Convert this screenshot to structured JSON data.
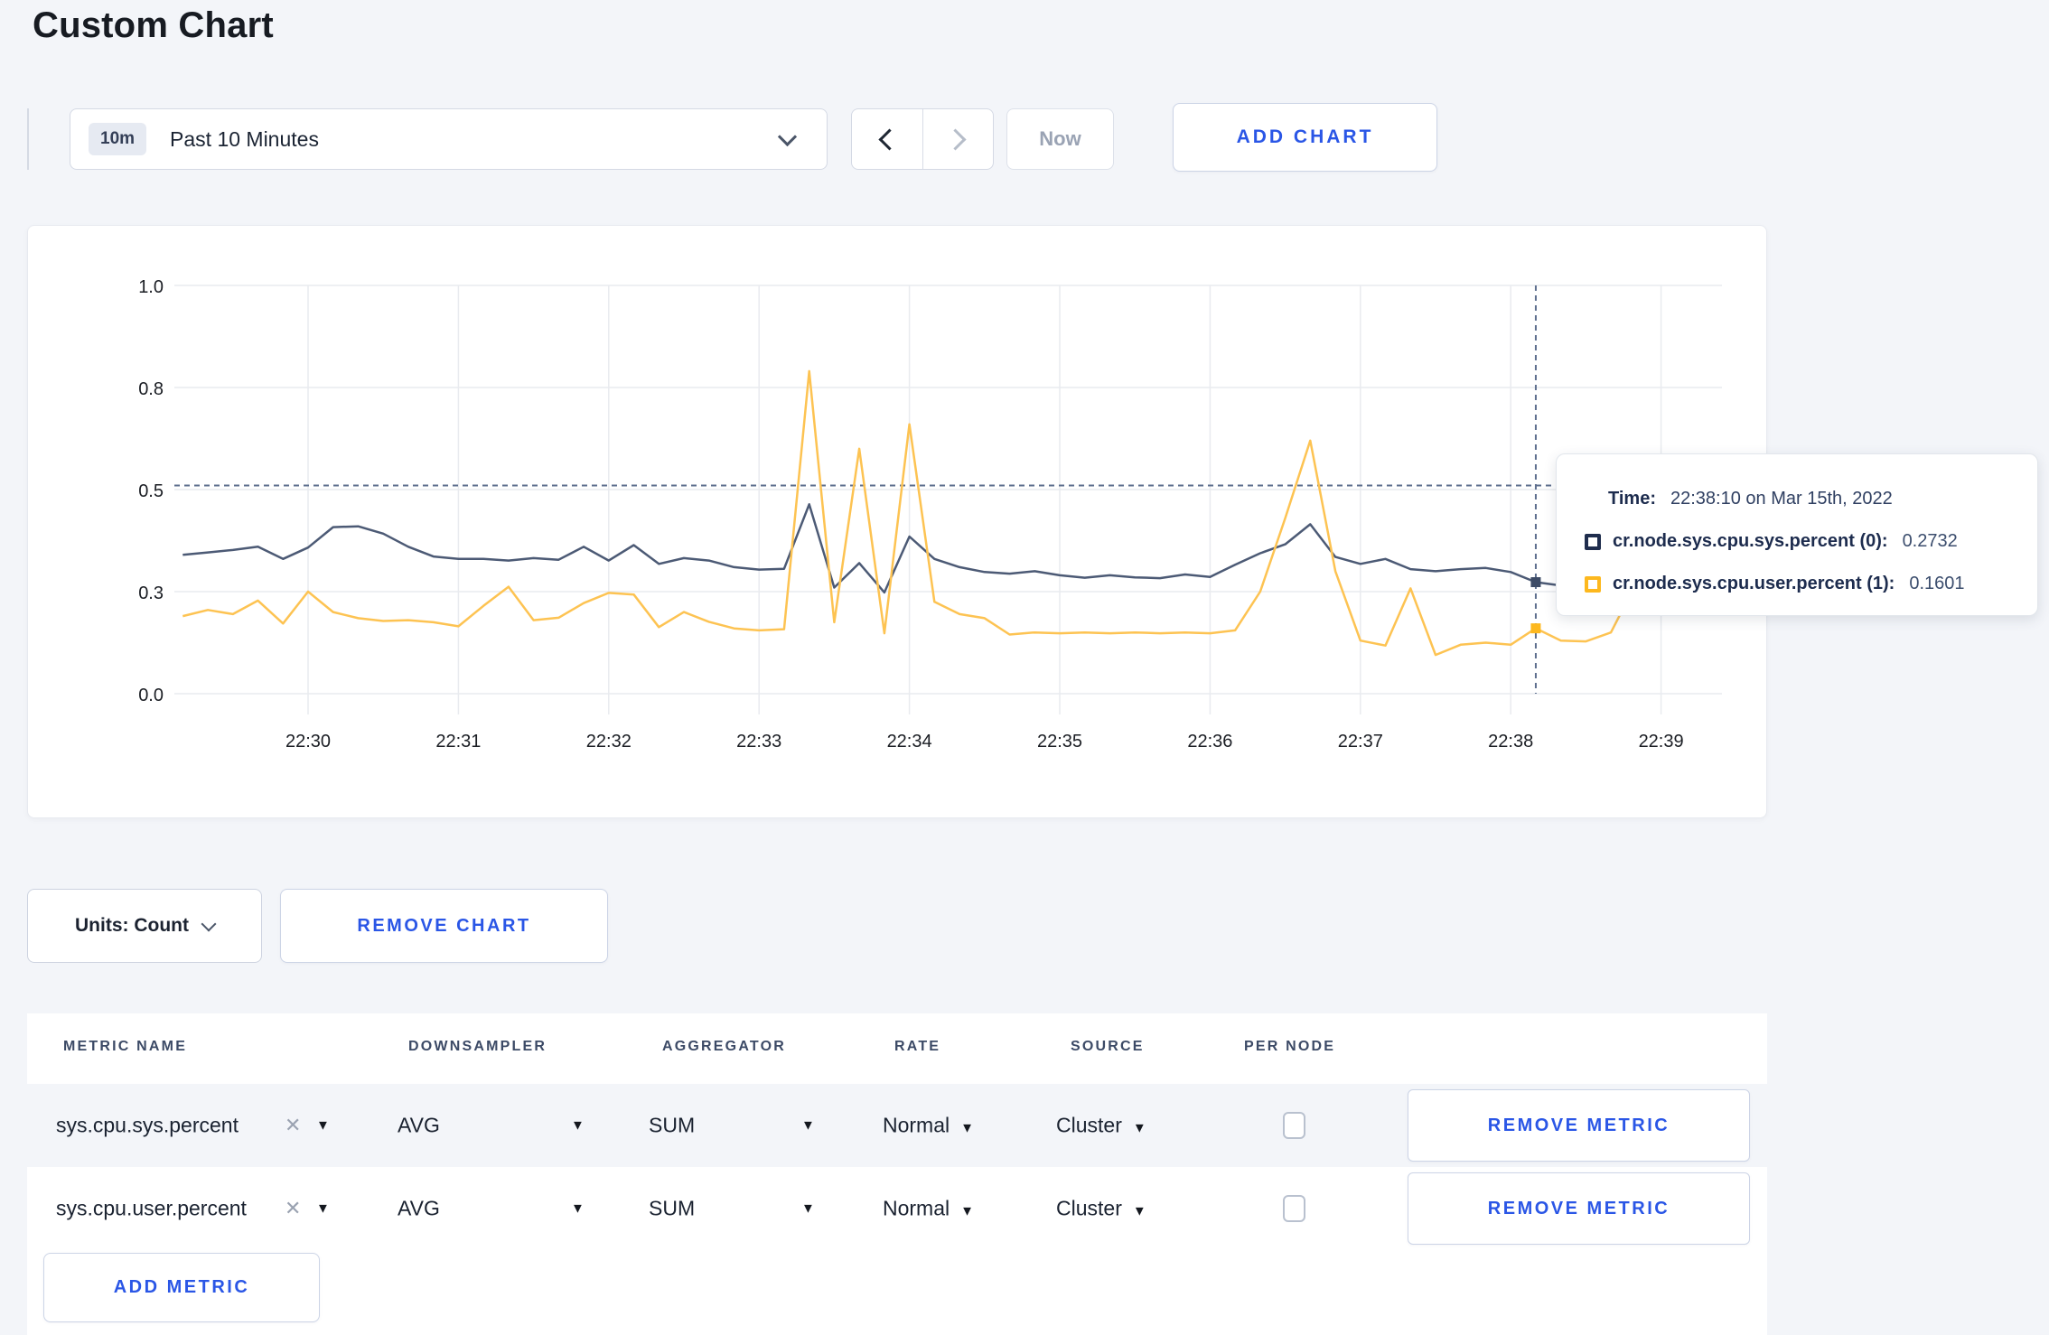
{
  "page": {
    "title": "Custom Chart",
    "background": "#f3f5f9",
    "accent_blue": "#2a56e6"
  },
  "icons": {
    "caret_down": "▼",
    "close": "✕"
  },
  "toolbar": {
    "time_window_badge": "10m",
    "time_window_label": "Past 10 Minutes",
    "now_label": "Now",
    "add_chart_label": "ADD CHART"
  },
  "chart_data": {
    "type": "line",
    "title": "",
    "xlabel": "",
    "ylabel": "",
    "ylim": [
      0,
      1
    ],
    "grid": true,
    "legend_position": "none",
    "x_tick_labels": [
      "22:30",
      "22:31",
      "22:32",
      "22:33",
      "22:34",
      "22:35",
      "22:36",
      "22:37",
      "22:38",
      "22:39"
    ],
    "y_ticks": [
      {
        "value": 0.0,
        "label": "0.0"
      },
      {
        "value": 0.25,
        "label": "0.3"
      },
      {
        "value": 0.5,
        "label": "0.5"
      },
      {
        "value": 0.75,
        "label": "0.8"
      },
      {
        "value": 1.0,
        "label": "1.0"
      }
    ],
    "x": [
      "22:29:10",
      "22:29:20",
      "22:29:30",
      "22:29:40",
      "22:29:50",
      "22:30:00",
      "22:30:10",
      "22:30:20",
      "22:30:30",
      "22:30:40",
      "22:30:50",
      "22:31:00",
      "22:31:10",
      "22:31:20",
      "22:31:30",
      "22:31:40",
      "22:31:50",
      "22:32:00",
      "22:32:10",
      "22:32:20",
      "22:32:30",
      "22:32:40",
      "22:32:50",
      "22:33:00",
      "22:33:10",
      "22:33:20",
      "22:33:30",
      "22:33:40",
      "22:33:50",
      "22:34:00",
      "22:34:10",
      "22:34:20",
      "22:34:30",
      "22:34:40",
      "22:34:50",
      "22:35:00",
      "22:35:10",
      "22:35:20",
      "22:35:30",
      "22:35:40",
      "22:35:50",
      "22:36:00",
      "22:36:10",
      "22:36:20",
      "22:36:30",
      "22:36:40",
      "22:36:50",
      "22:37:00",
      "22:37:10",
      "22:37:20",
      "22:37:30",
      "22:37:40",
      "22:37:50",
      "22:38:00",
      "22:38:10",
      "22:38:20",
      "22:38:30",
      "22:38:40",
      "22:38:50",
      "22:39:00",
      "22:39:10"
    ],
    "series": [
      {
        "name": "cr.node.sys.cpu.sys.percent (0)",
        "color": "#4c5a75",
        "dot_color": "#3d4b66",
        "values": [
          0.34,
          0.346,
          0.352,
          0.36,
          0.33,
          0.358,
          0.408,
          0.41,
          0.392,
          0.36,
          0.336,
          0.33,
          0.33,
          0.326,
          0.332,
          0.328,
          0.36,
          0.326,
          0.364,
          0.318,
          0.332,
          0.326,
          0.31,
          0.304,
          0.306,
          0.464,
          0.26,
          0.32,
          0.248,
          0.385,
          0.33,
          0.31,
          0.298,
          0.294,
          0.3,
          0.29,
          0.284,
          0.29,
          0.285,
          0.283,
          0.292,
          0.286,
          0.316,
          0.344,
          0.366,
          0.415,
          0.335,
          0.318,
          0.33,
          0.305,
          0.3,
          0.305,
          0.308,
          0.298,
          0.2732,
          0.265,
          0.3,
          0.305,
          0.3,
          0.298,
          0.302
        ]
      },
      {
        "name": "cr.node.sys.cpu.user.percent (1)",
        "color": "#fdc352",
        "dot_color": "#fdb81e",
        "values": [
          0.19,
          0.205,
          0.195,
          0.228,
          0.172,
          0.25,
          0.2,
          0.185,
          0.178,
          0.18,
          0.175,
          0.165,
          0.215,
          0.262,
          0.18,
          0.186,
          0.222,
          0.247,
          0.243,
          0.163,
          0.2,
          0.176,
          0.16,
          0.155,
          0.158,
          0.79,
          0.175,
          0.6,
          0.148,
          0.66,
          0.225,
          0.195,
          0.185,
          0.145,
          0.15,
          0.148,
          0.15,
          0.148,
          0.15,
          0.148,
          0.15,
          0.148,
          0.155,
          0.25,
          0.43,
          0.62,
          0.3,
          0.13,
          0.118,
          0.258,
          0.095,
          0.12,
          0.125,
          0.12,
          0.1601,
          0.13,
          0.128,
          0.15,
          0.27,
          0.235,
          0.27
        ]
      }
    ],
    "crosshair": {
      "time": "22:38:10",
      "y_value": 0.51
    }
  },
  "tooltip": {
    "time_label": "Time:",
    "time_value": "22:38:10 on Mar 15th, 2022",
    "rows": [
      {
        "label": "cr.node.sys.cpu.sys.percent (0):",
        "value": "0.2732",
        "swatch_color": "#1f2d4d"
      },
      {
        "label": "cr.node.sys.cpu.user.percent (1):",
        "value": "0.1601",
        "swatch_color": "#fdb81e"
      }
    ]
  },
  "chart_controls": {
    "units_label": "Units: Count",
    "remove_chart_label": "REMOVE CHART"
  },
  "metrics_table": {
    "headers": [
      "METRIC NAME",
      "DOWNSAMPLER",
      "AGGREGATOR",
      "RATE",
      "SOURCE",
      "PER NODE"
    ],
    "rows": [
      {
        "metric": "sys.cpu.sys.percent",
        "downsampler": "AVG",
        "aggregator": "SUM",
        "rate": "Normal",
        "source": "Cluster",
        "per_node_checked": false,
        "remove_label": "REMOVE METRIC"
      },
      {
        "metric": "sys.cpu.user.percent",
        "downsampler": "AVG",
        "aggregator": "SUM",
        "rate": "Normal",
        "source": "Cluster",
        "per_node_checked": false,
        "remove_label": "REMOVE METRIC"
      }
    ],
    "add_metric_label": "ADD METRIC"
  }
}
